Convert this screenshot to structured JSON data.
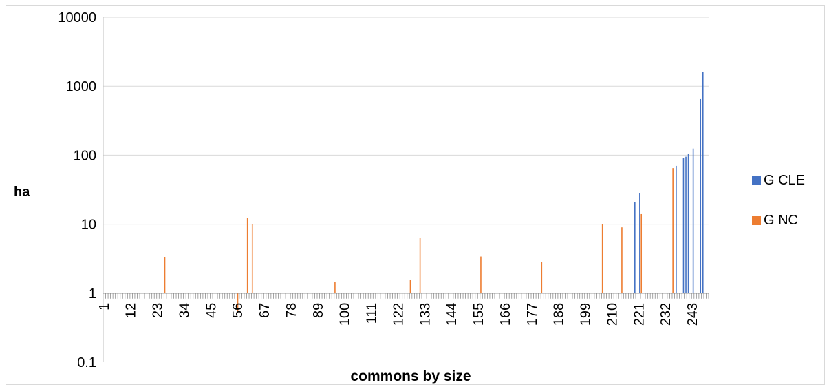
{
  "chart_data": {
    "type": "bar",
    "y_scale": "log",
    "xlabel": "commons by size",
    "ylabel": "ha",
    "ylim": [
      0.1,
      10000
    ],
    "y_ticks": [
      "0.1",
      "1",
      "10",
      "100",
      "1000",
      "10000"
    ],
    "x_tick_labels": [
      "1",
      "12",
      "23",
      "34",
      "45",
      "56",
      "67",
      "78",
      "89",
      "100",
      "111",
      "122",
      "133",
      "144",
      "155",
      "166",
      "177",
      "188",
      "199",
      "210",
      "221",
      "232",
      "243"
    ],
    "n_categories": 249,
    "grid": "horizontal",
    "legend_position": "right",
    "series": [
      {
        "name": "G CLE",
        "color": "#4472c4",
        "points": [
          {
            "x": 219,
            "y": 21
          },
          {
            "x": 221,
            "y": 28
          },
          {
            "x": 236,
            "y": 70
          },
          {
            "x": 239,
            "y": 92
          },
          {
            "x": 240,
            "y": 95
          },
          {
            "x": 241,
            "y": 105
          },
          {
            "x": 243,
            "y": 125
          },
          {
            "x": 246,
            "y": 650
          },
          {
            "x": 247,
            "y": 1600
          }
        ]
      },
      {
        "name": "G NC",
        "color": "#ed7d31",
        "points": [
          {
            "x": 26,
            "y": 3.3
          },
          {
            "x": 56,
            "y": 0.55
          },
          {
            "x": 60,
            "y": 12.3
          },
          {
            "x": 62,
            "y": 10
          },
          {
            "x": 96,
            "y": 1.45
          },
          {
            "x": 127,
            "y": 1.55
          },
          {
            "x": 131,
            "y": 6.3
          },
          {
            "x": 156,
            "y": 3.4
          },
          {
            "x": 181,
            "y": 2.8
          },
          {
            "x": 206,
            "y": 10
          },
          {
            "x": 214,
            "y": 9
          },
          {
            "x": 222,
            "y": 14
          },
          {
            "x": 235,
            "y": 65
          }
        ]
      }
    ]
  }
}
